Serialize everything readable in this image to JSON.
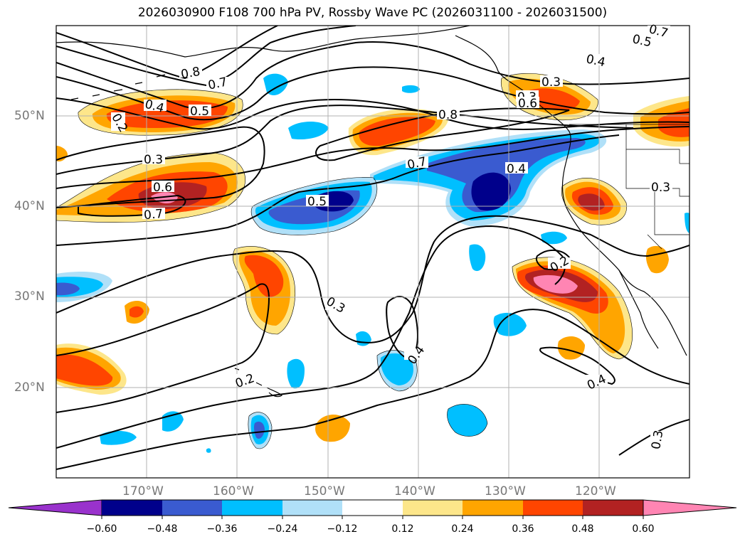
{
  "title": "2026030900 F108 700 hPa PV, Rossby Wave PC (2026031100 - 2026031500)",
  "lat_labels": [
    "50°N",
    "40°N",
    "30°N",
    "20°N"
  ],
  "lon_labels": [
    "170°W",
    "160°W",
    "150°W",
    "140°W",
    "130°W",
    "120°W"
  ],
  "contour_labels": [
    "0.8",
    "0.7",
    "0.4",
    "0.5",
    "0.2",
    "0.3",
    "0.6",
    "0.7",
    "0.8",
    "0.7",
    "0.4",
    "0.5",
    "0.3",
    "0.3",
    "0.3",
    "0.2",
    "0.4",
    "0.2",
    "0.4",
    "0.3",
    "0.3",
    "0.6",
    "0.7",
    "0.5",
    "0.4"
  ],
  "colorbar": {
    "ticks": [
      "−0.60",
      "−0.48",
      "−0.36",
      "−0.24",
      "−0.12",
      "0.12",
      "0.24",
      "0.36",
      "0.48",
      "0.60"
    ],
    "colors": [
      "#9932cc",
      "#00008b",
      "#3a5bd0",
      "#00bfff",
      "#b0e0f8",
      "#ffffff",
      "#fde68a",
      "#ffa500",
      "#ff4500",
      "#b22222",
      "#ff85b3"
    ]
  },
  "colors": {
    "neg_1": "#b0e0f8",
    "neg_2": "#00bfff",
    "neg_3": "#3a5bd0",
    "neg_4": "#00008b",
    "pos_1": "#fde68a",
    "pos_2": "#ffa500",
    "pos_3": "#ff4500",
    "pos_4": "#b22222",
    "pos_5": "#ff85b3"
  }
}
